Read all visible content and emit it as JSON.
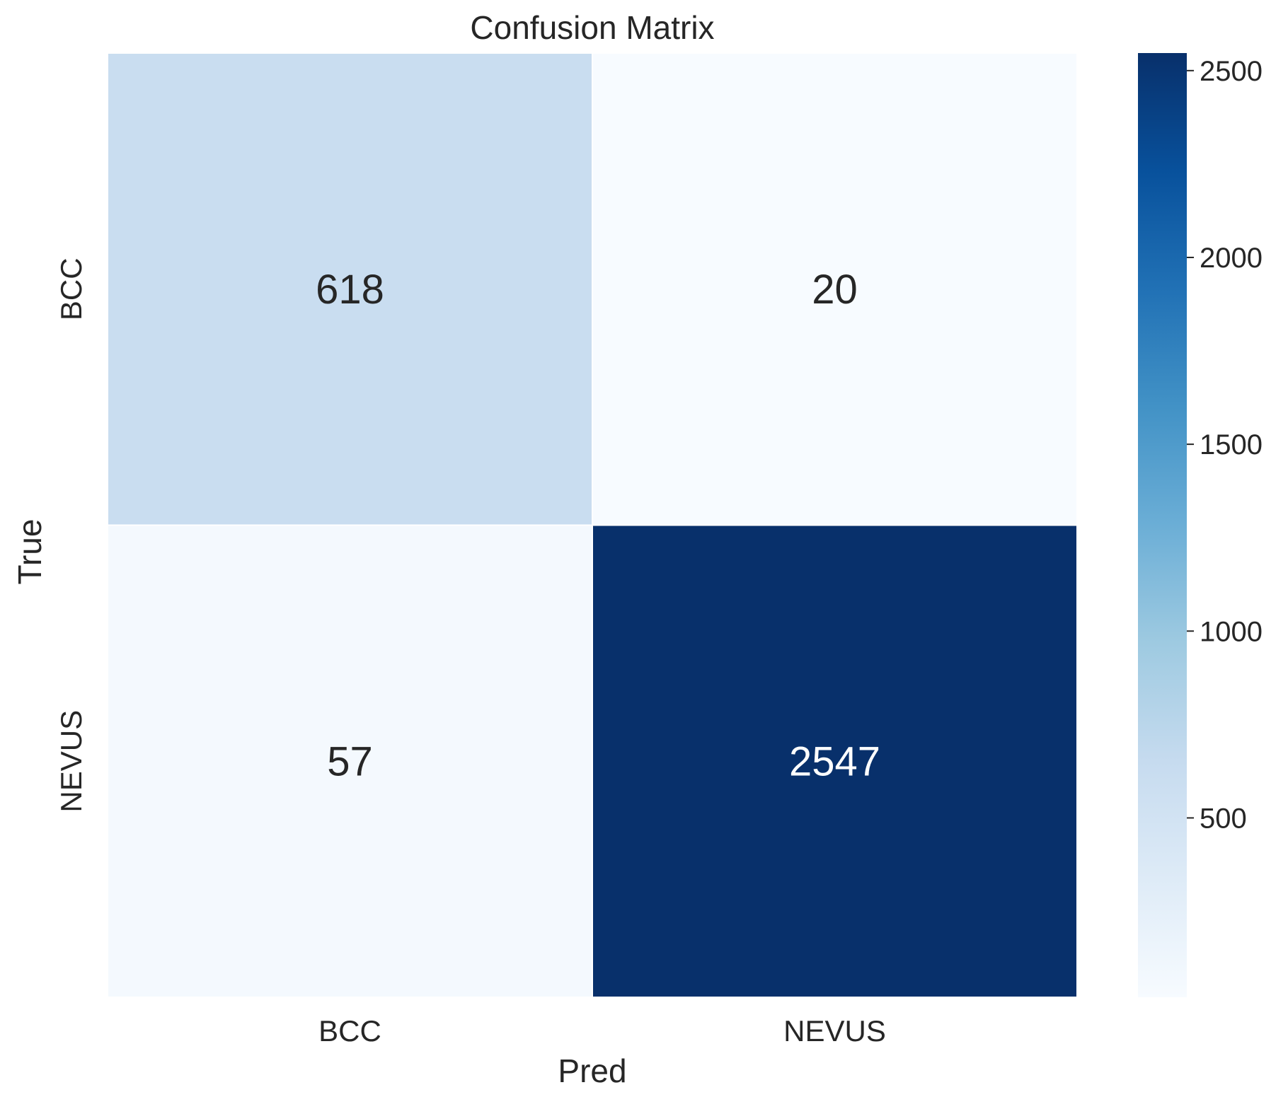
{
  "chart_data": {
    "type": "heatmap",
    "title": "Confusion Matrix",
    "xlabel": "Pred",
    "ylabel": "True",
    "x_categories": [
      "BCC",
      "NEVUS"
    ],
    "y_categories": [
      "BCC",
      "NEVUS"
    ],
    "values": [
      [
        618,
        20
      ],
      [
        57,
        2547
      ]
    ],
    "colormap": "Blues",
    "color_min": "#f7fbff",
    "color_max": "#08306b",
    "colorbar": {
      "range": [
        20,
        2547
      ],
      "ticks": [
        500,
        1000,
        1500,
        2000,
        2500
      ]
    },
    "grid": false
  }
}
